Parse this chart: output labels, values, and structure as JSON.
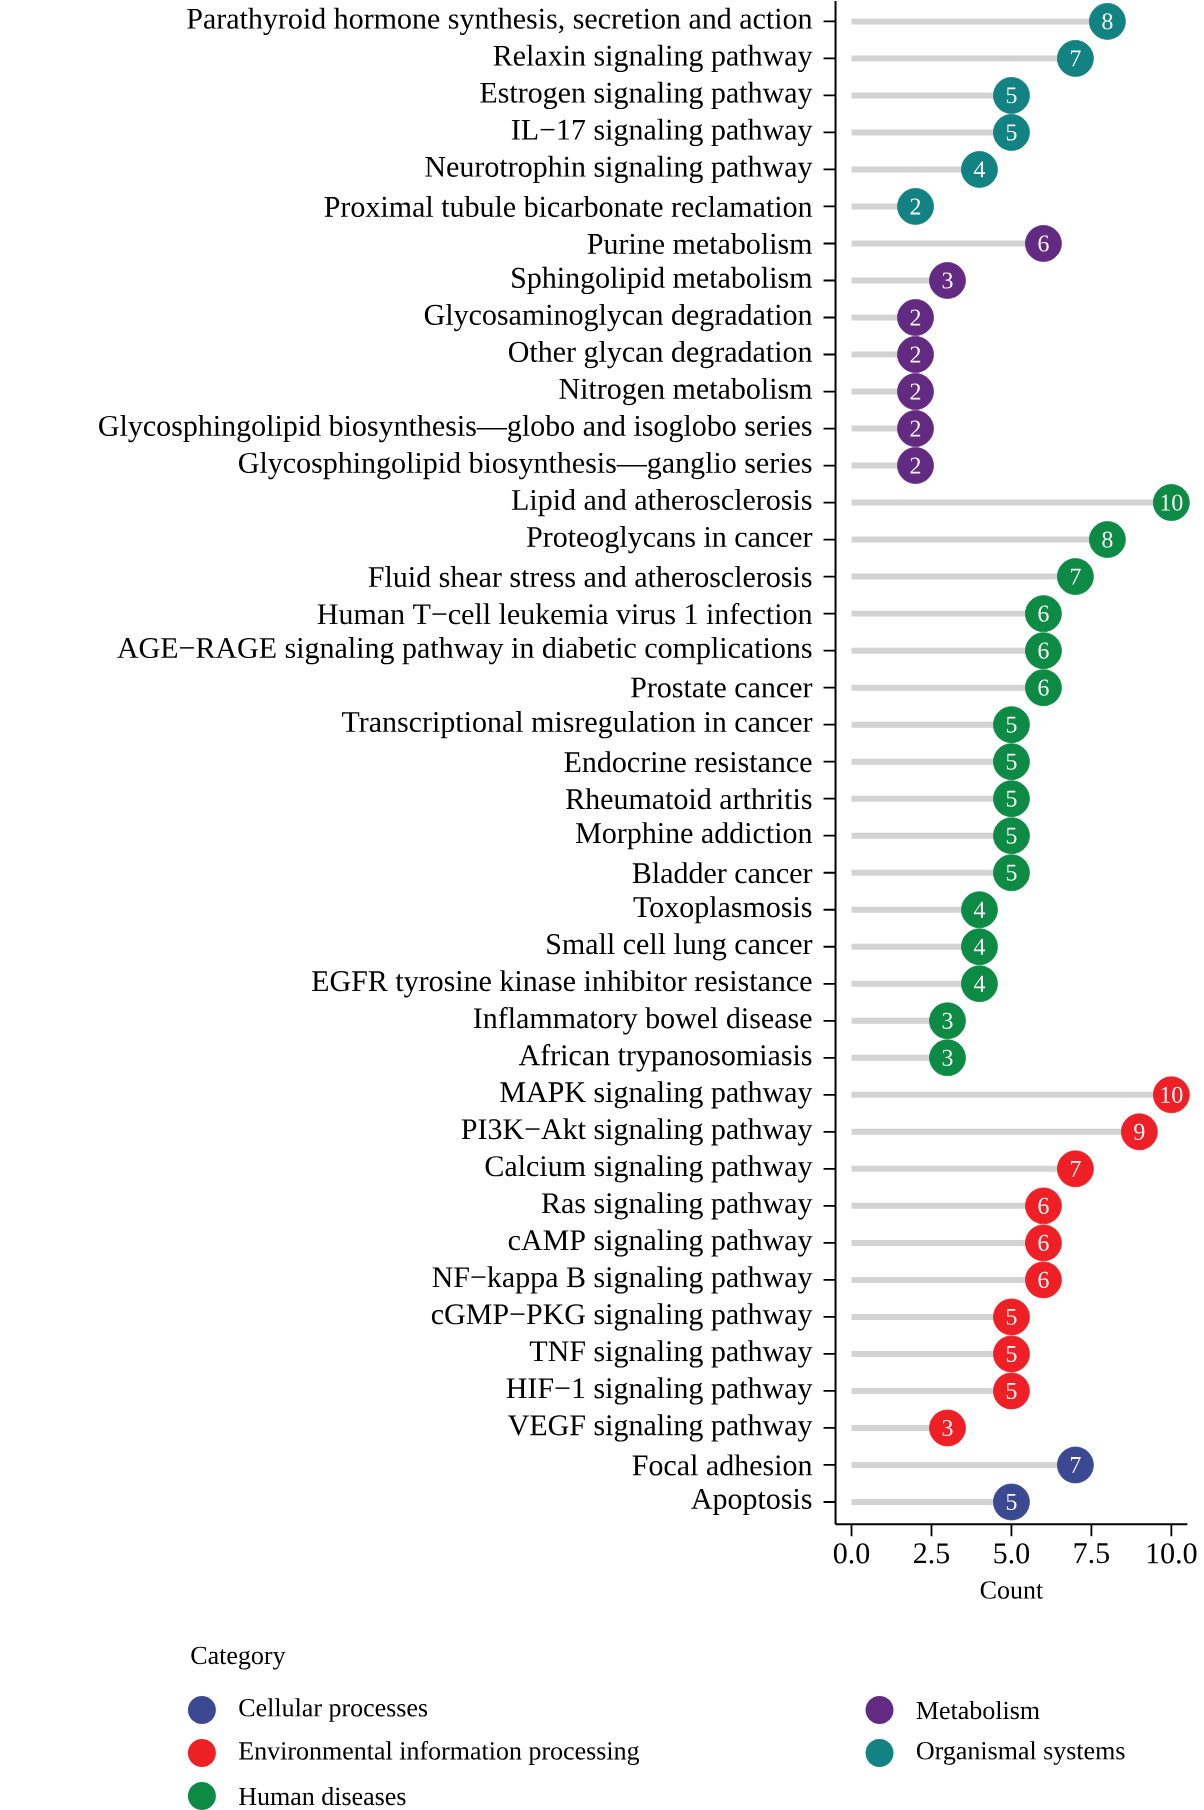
{
  "chart_data": {
    "type": "lollipop",
    "orientation": "horizontal",
    "xlabel": "Count",
    "legend_title": "Category",
    "legend": "bottom",
    "marker": "circle",
    "data_labels": true,
    "xlim": [
      -0.5,
      10.5
    ],
    "xticks": [
      {
        "value": 0,
        "label": "0.0"
      },
      {
        "value": 2.5,
        "label": "2.5"
      },
      {
        "value": 5,
        "label": "5.0"
      },
      {
        "value": 7.5,
        "label": "7.5"
      },
      {
        "value": 10,
        "label": "10.0"
      }
    ],
    "categories": [
      "Parathyroid hormone synthesis, secretion and action",
      "Relaxin signaling pathway",
      "Estrogen signaling pathway",
      "IL−17 signaling pathway",
      "Neurotrophin signaling pathway",
      "Proximal tubule bicarbonate reclamation",
      "Purine metabolism",
      "Sphingolipid metabolism",
      "Glycosaminoglycan degradation",
      "Other glycan degradation",
      "Nitrogen metabolism",
      "Glycosphingolipid biosynthesis—globo and isoglobo series",
      "Glycosphingolipid biosynthesis—ganglio series",
      "Lipid and atherosclerosis",
      "Proteoglycans in cancer",
      "Fluid shear stress and atherosclerosis",
      "Human T−cell leukemia virus 1 infection",
      "AGE−RAGE signaling pathway in diabetic complications",
      "Prostate cancer",
      "Transcriptional misregulation in cancer",
      "Endocrine resistance",
      "Rheumatoid arthritis",
      "Morphine addiction",
      "Bladder cancer",
      "Toxoplasmosis",
      "Small cell lung cancer",
      "EGFR tyrosine kinase inhibitor resistance",
      "Inflammatory bowel disease",
      "African trypanosomiasis",
      "MAPK signaling pathway",
      "PI3K−Akt signaling pathway",
      "Calcium signaling pathway",
      "Ras signaling pathway",
      "cAMP signaling pathway",
      "NF−kappa B signaling pathway",
      "cGMP−PKG signaling pathway",
      "TNF signaling pathway",
      "HIF−1 signaling pathway",
      "VEGF signaling pathway",
      "Focal adhesion",
      "Apoptosis"
    ],
    "series": [
      {
        "name": "Cellular processes",
        "color": "#3b4992",
        "values": [
          null,
          null,
          null,
          null,
          null,
          null,
          null,
          null,
          null,
          null,
          null,
          null,
          null,
          null,
          null,
          null,
          null,
          null,
          null,
          null,
          null,
          null,
          null,
          null,
          null,
          null,
          null,
          null,
          null,
          null,
          null,
          null,
          null,
          null,
          null,
          null,
          null,
          null,
          null,
          7,
          5
        ]
      },
      {
        "name": "Environmental information processing",
        "color": "#ee2026",
        "values": [
          null,
          null,
          null,
          null,
          null,
          null,
          null,
          null,
          null,
          null,
          null,
          null,
          null,
          null,
          null,
          null,
          null,
          null,
          null,
          null,
          null,
          null,
          null,
          null,
          null,
          null,
          null,
          null,
          null,
          10,
          9,
          7,
          6,
          6,
          6,
          5,
          5,
          5,
          3,
          null,
          null
        ]
      },
      {
        "name": "Human diseases",
        "color": "#0d8a44",
        "values": [
          null,
          null,
          null,
          null,
          null,
          null,
          null,
          null,
          null,
          null,
          null,
          null,
          null,
          10,
          8,
          7,
          6,
          6,
          6,
          5,
          5,
          5,
          5,
          5,
          4,
          4,
          4,
          3,
          3,
          null,
          null,
          null,
          null,
          null,
          null,
          null,
          null,
          null,
          null,
          null,
          null
        ]
      },
      {
        "name": "Metabolism",
        "color": "#632a82",
        "values": [
          null,
          null,
          null,
          null,
          null,
          null,
          6,
          3,
          2,
          2,
          2,
          2,
          2,
          null,
          null,
          null,
          null,
          null,
          null,
          null,
          null,
          null,
          null,
          null,
          null,
          null,
          null,
          null,
          null,
          null,
          null,
          null,
          null,
          null,
          null,
          null,
          null,
          null,
          null,
          null,
          null
        ]
      },
      {
        "name": "Organismal systems",
        "color": "#128282",
        "values": [
          8,
          7,
          5,
          5,
          4,
          2,
          null,
          null,
          null,
          null,
          null,
          null,
          null,
          null,
          null,
          null,
          null,
          null,
          null,
          null,
          null,
          null,
          null,
          null,
          null,
          null,
          null,
          null,
          null,
          null,
          null,
          null,
          null,
          null,
          null,
          null,
          null,
          null,
          null,
          null,
          null
        ]
      }
    ]
  }
}
